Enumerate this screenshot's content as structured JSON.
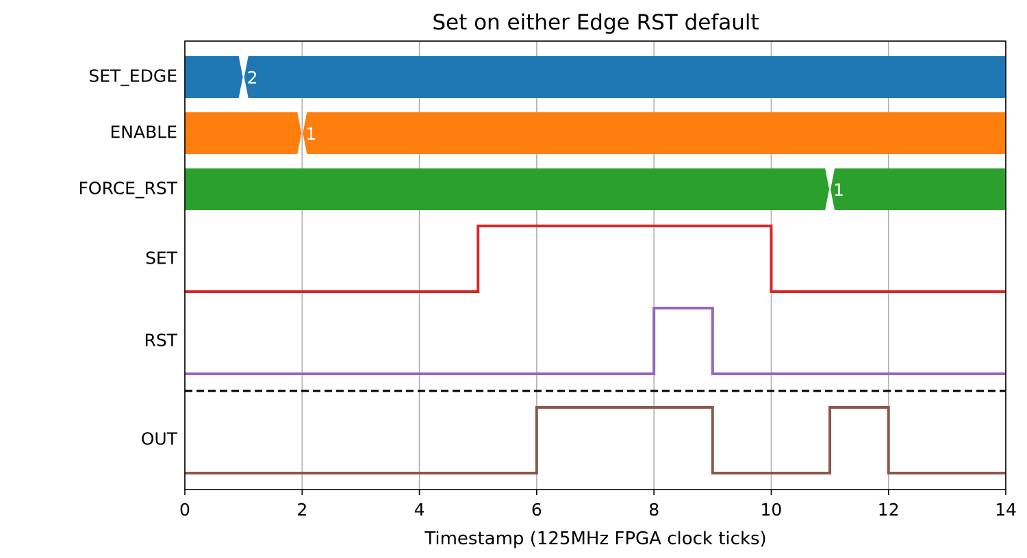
{
  "chart_data": {
    "type": "line",
    "title": "Set on either Edge RST default",
    "xlabel": "Timestamp (125MHz FPGA clock ticks)",
    "ylabel": "",
    "xlim": [
      0,
      14
    ],
    "xticks": [
      0,
      2,
      4,
      6,
      8,
      10,
      12,
      14
    ],
    "grid": "vertical",
    "signals": [
      {
        "name": "SET_EDGE",
        "kind": "bus",
        "color": "#1f77b4",
        "segments": [
          {
            "start": 0,
            "end": 1,
            "value": ""
          },
          {
            "start": 1,
            "end": 14,
            "value": "2"
          }
        ]
      },
      {
        "name": "ENABLE",
        "kind": "bus",
        "color": "#ff7f0e",
        "segments": [
          {
            "start": 0,
            "end": 2,
            "value": ""
          },
          {
            "start": 2,
            "end": 14,
            "value": "1"
          }
        ]
      },
      {
        "name": "FORCE_RST",
        "kind": "bus",
        "color": "#2ca02c",
        "segments": [
          {
            "start": 0,
            "end": 11,
            "value": ""
          },
          {
            "start": 11,
            "end": 14,
            "value": "1"
          }
        ]
      },
      {
        "name": "SET",
        "kind": "digital",
        "color": "#d62728",
        "x": [
          0,
          5,
          10,
          14
        ],
        "y": [
          0,
          1,
          0,
          0
        ]
      },
      {
        "name": "RST",
        "kind": "digital",
        "color": "#9467bd",
        "x": [
          0,
          8,
          9,
          14
        ],
        "y": [
          0,
          1,
          0,
          0
        ]
      },
      {
        "name": "OUT",
        "kind": "digital",
        "color": "#8c564b",
        "x": [
          0,
          6,
          9,
          11,
          12,
          14
        ],
        "y": [
          0,
          1,
          0,
          1,
          0,
          0
        ]
      }
    ],
    "separator": {
      "style": "dashed",
      "color": "#000000",
      "after": "RST"
    }
  }
}
